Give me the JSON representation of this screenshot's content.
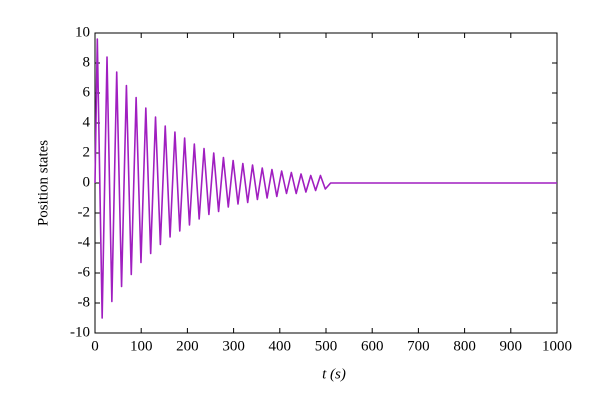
{
  "chart_data": {
    "type": "line",
    "x_label": "t (s)",
    "y_label": "Position states",
    "x": [
      0,
      5,
      15.5,
      26,
      36.5,
      47,
      57.5,
      68,
      78.5,
      89,
      99.5,
      110,
      120.5,
      131,
      141.5,
      152,
      162.5,
      173,
      183.5,
      194,
      204.5,
      215,
      225.5,
      236,
      246.5,
      257,
      267.5,
      278,
      288.5,
      299,
      309.5,
      320,
      330.5,
      341,
      351.5,
      362,
      372.5,
      383,
      393.5,
      404,
      414.5,
      425,
      435.5,
      446,
      456.5,
      467,
      477.5,
      488,
      498.5,
      510,
      1000
    ],
    "series": [
      {
        "color": "#a01fc0",
        "values": [
          0,
          9.6,
          -9.0,
          8.4,
          -7.9,
          7.4,
          -6.9,
          6.5,
          -6.1,
          5.7,
          -5.3,
          5.0,
          -4.7,
          4.4,
          -4.1,
          3.8,
          -3.6,
          3.4,
          -3.2,
          3.0,
          -2.8,
          2.6,
          -2.4,
          2.3,
          -2.1,
          2.0,
          -1.9,
          1.7,
          -1.6,
          1.5,
          -1.4,
          1.3,
          -1.3,
          1.2,
          -1.1,
          1.0,
          -1.0,
          0.9,
          -0.9,
          0.8,
          -0.7,
          0.7,
          -0.7,
          0.6,
          -0.6,
          0.5,
          -0.5,
          0.5,
          -0.4,
          0,
          0
        ]
      }
    ],
    "xlim": [
      0,
      1000
    ],
    "xticks": [
      0,
      100,
      200,
      300,
      400,
      500,
      600,
      700,
      800,
      900,
      1000
    ],
    "ylim": [
      -10,
      10
    ],
    "yticks": [
      -10,
      -8,
      -6,
      -4,
      -2,
      0,
      2,
      4,
      6,
      8,
      10
    ],
    "grid": false
  }
}
